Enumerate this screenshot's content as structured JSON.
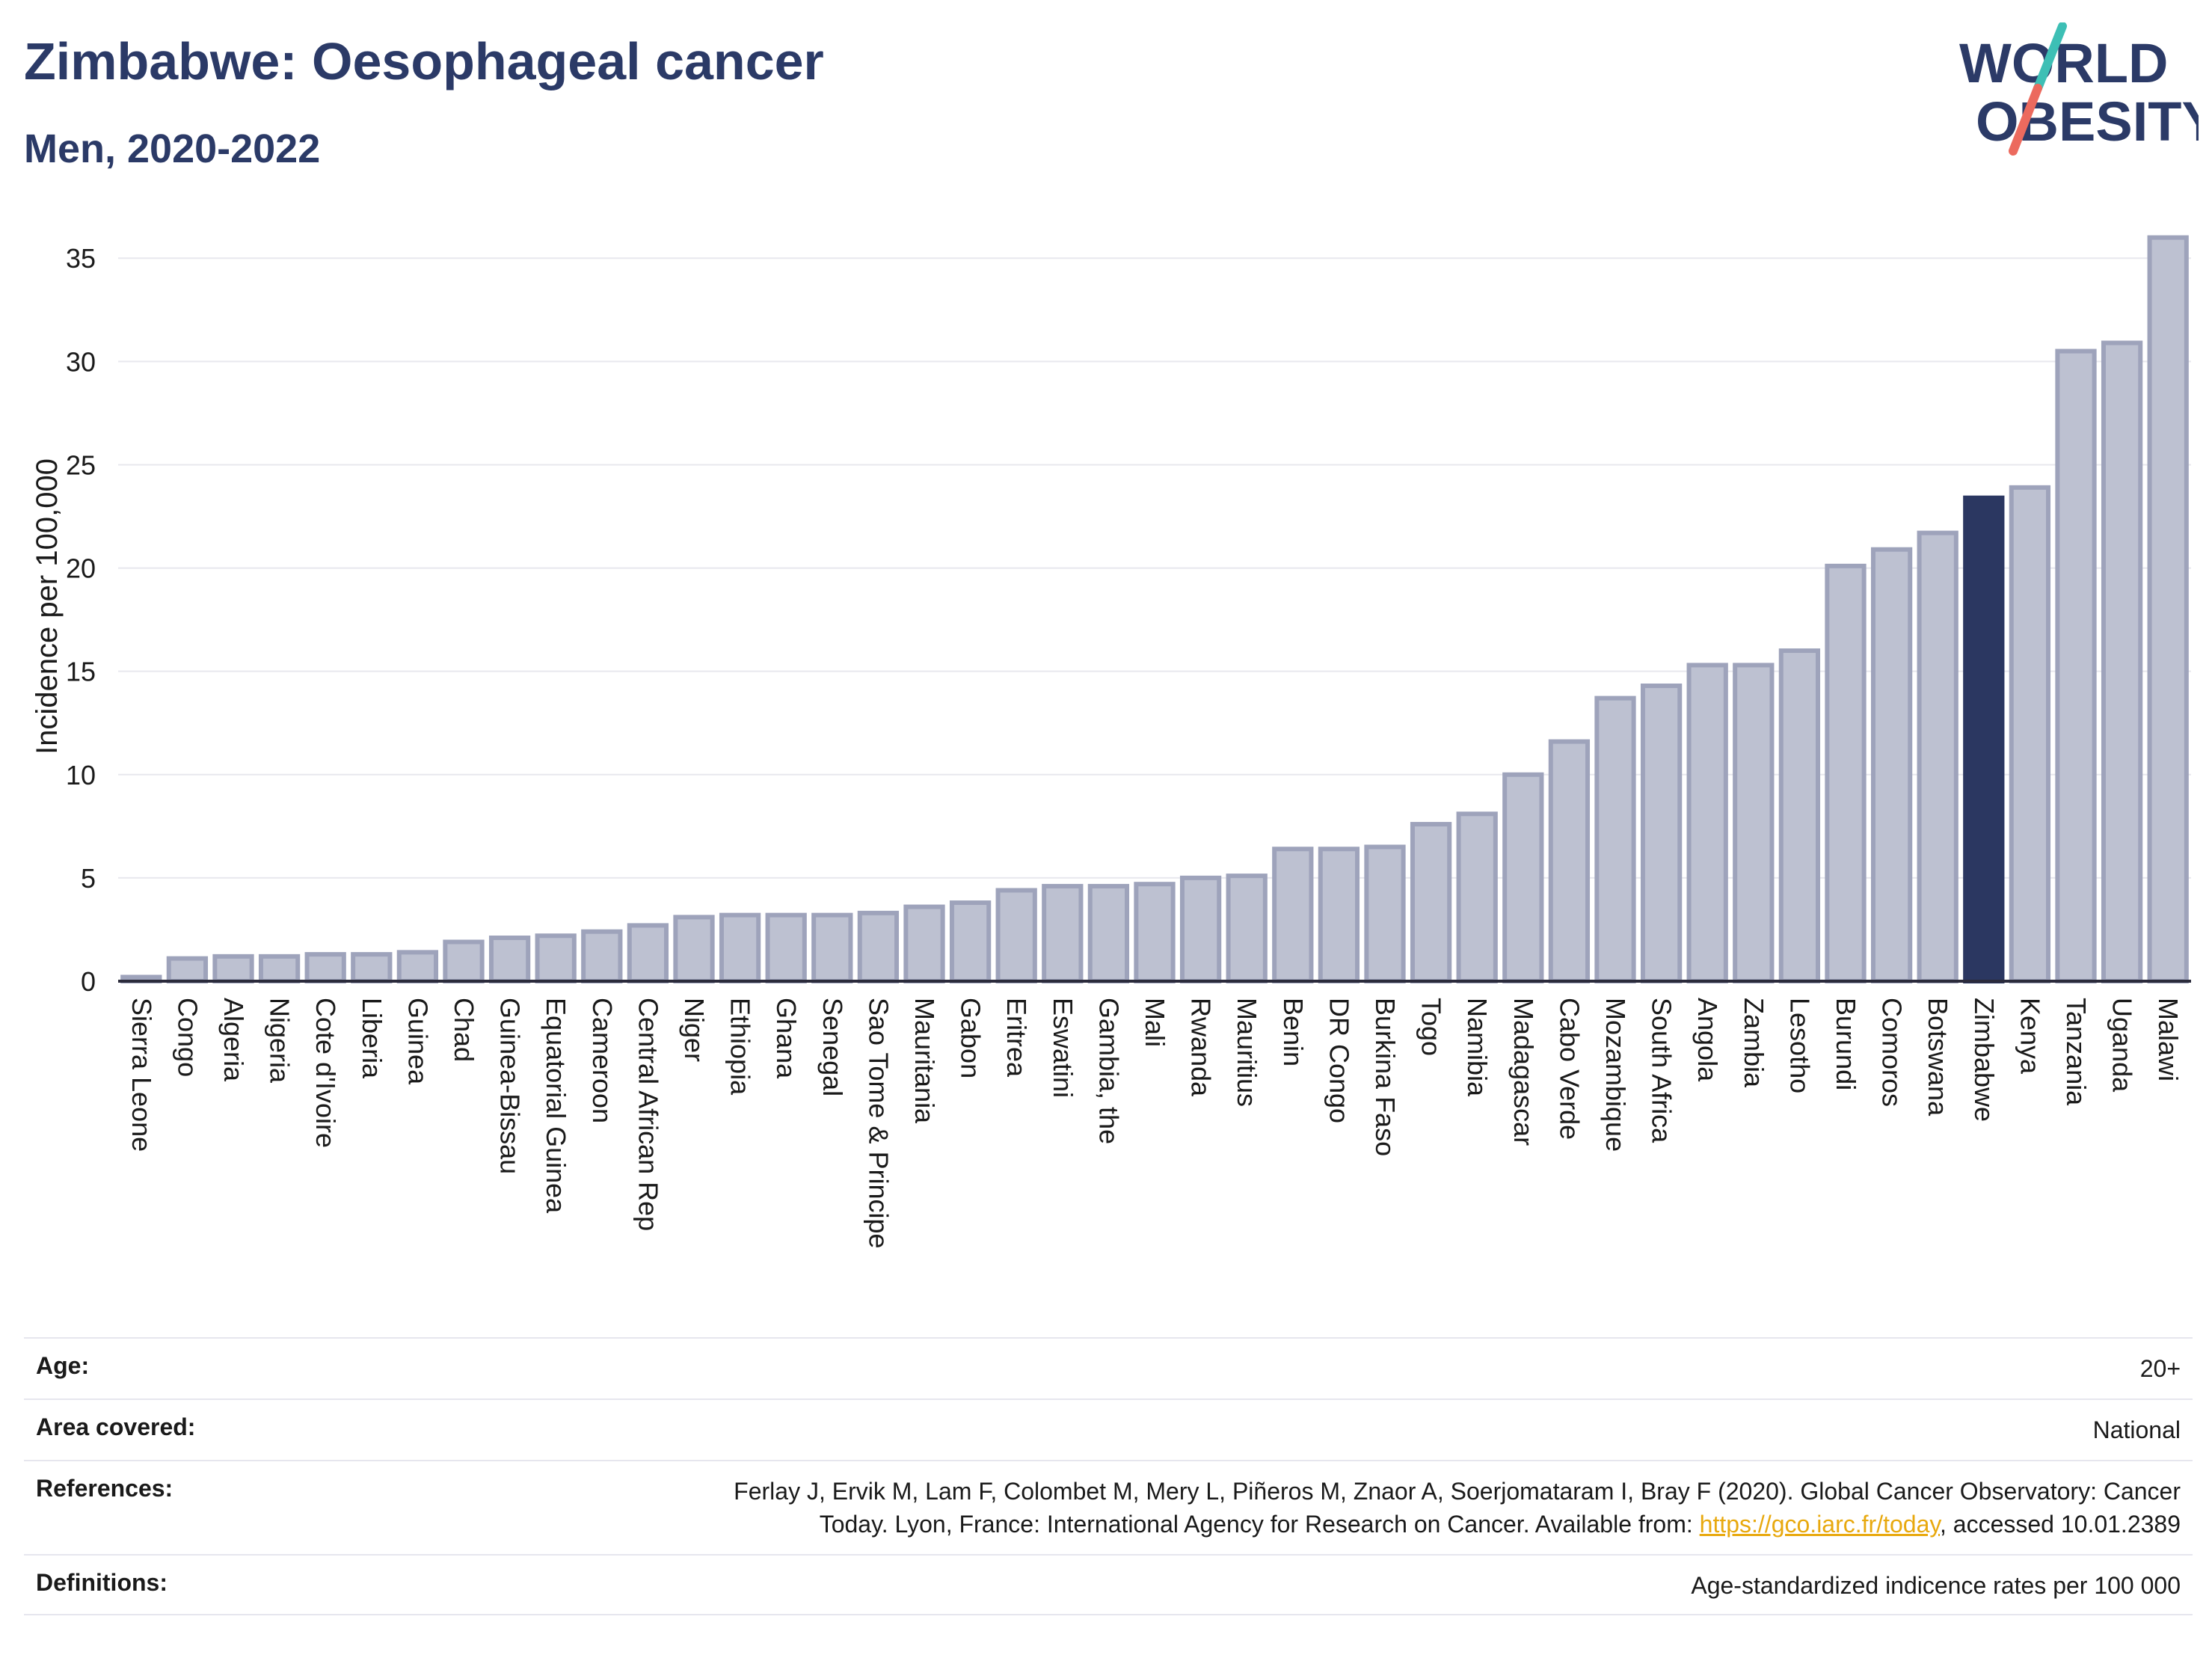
{
  "header": {
    "title": "Zimbabwe: Oesophageal cancer",
    "subtitle": "Men, 2020-2022"
  },
  "logo": {
    "line1": "WORLD",
    "line2": "OBESITY",
    "accent_teal": "#3dbfb5",
    "accent_coral": "#ec6a5e",
    "text_color": "#2b3a67"
  },
  "chart_data": {
    "type": "bar",
    "ylabel": "Incidence per 100,000",
    "ylim": [
      0,
      37
    ],
    "yticks": [
      0,
      5,
      10,
      15,
      20,
      25,
      30,
      35
    ],
    "grid": true,
    "highlight": "Zimbabwe",
    "colors": {
      "bar": "#bdc1d1",
      "bar_edge": "#9ea3bb",
      "highlight": "#2b3761",
      "grid": "#e8e8ee",
      "axis": "#2b2b3b"
    },
    "categories": [
      "Sierra Leone",
      "Congo",
      "Algeria",
      "Nigeria",
      "Cote d'Ivoire",
      "Liberia",
      "Guinea",
      "Chad",
      "Guinea-Bissau",
      "Equatorial Guinea",
      "Cameroon",
      "Central African Rep",
      "Niger",
      "Ethiopia",
      "Ghana",
      "Senegal",
      "Sao Tome & Principe",
      "Mauritania",
      "Gabon",
      "Eritrea",
      "Eswatini",
      "Gambia, the",
      "Mali",
      "Rwanda",
      "Mauritius",
      "Benin",
      "DR Congo",
      "Burkina Faso",
      "Togo",
      "Namibia",
      "Madagascar",
      "Cabo Verde",
      "Mozambique",
      "South Africa",
      "Angola",
      "Zambia",
      "Lesotho",
      "Burundi",
      "Comoros",
      "Botswana",
      "Zimbabwe",
      "Kenya",
      "Tanzania",
      "Uganda",
      "Malawi"
    ],
    "values": [
      0.2,
      1.1,
      1.2,
      1.2,
      1.3,
      1.3,
      1.4,
      1.9,
      2.1,
      2.2,
      2.4,
      2.7,
      3.1,
      3.2,
      3.2,
      3.2,
      3.3,
      3.6,
      3.8,
      4.4,
      4.6,
      4.6,
      4.7,
      5.0,
      5.1,
      6.4,
      6.4,
      6.5,
      7.6,
      8.1,
      10.0,
      11.6,
      13.7,
      14.3,
      15.3,
      15.3,
      16.0,
      20.1,
      20.9,
      21.7,
      23.4,
      23.9,
      30.5,
      30.9,
      36.0
    ]
  },
  "info": [
    {
      "key": "Age:",
      "value": "20+"
    },
    {
      "key": "Area covered:",
      "value": "National"
    },
    {
      "key": "References:",
      "value_lines": [
        "Ferlay J, Ervik M, Lam F, Colombet M, Mery L, Piñeros M, Znaor A, Soerjomataram I, Bray F (2020). Global Cancer Observatory: Cancer",
        "Today. Lyon, France: International Agency for Research on Cancer. Available from: "
      ],
      "link": "https://gco.iarc.fr/today",
      "suffix": ", accessed 10.01.2389"
    },
    {
      "key": "Definitions:",
      "value": "Age-standardized indicence rates per 100 000"
    }
  ]
}
